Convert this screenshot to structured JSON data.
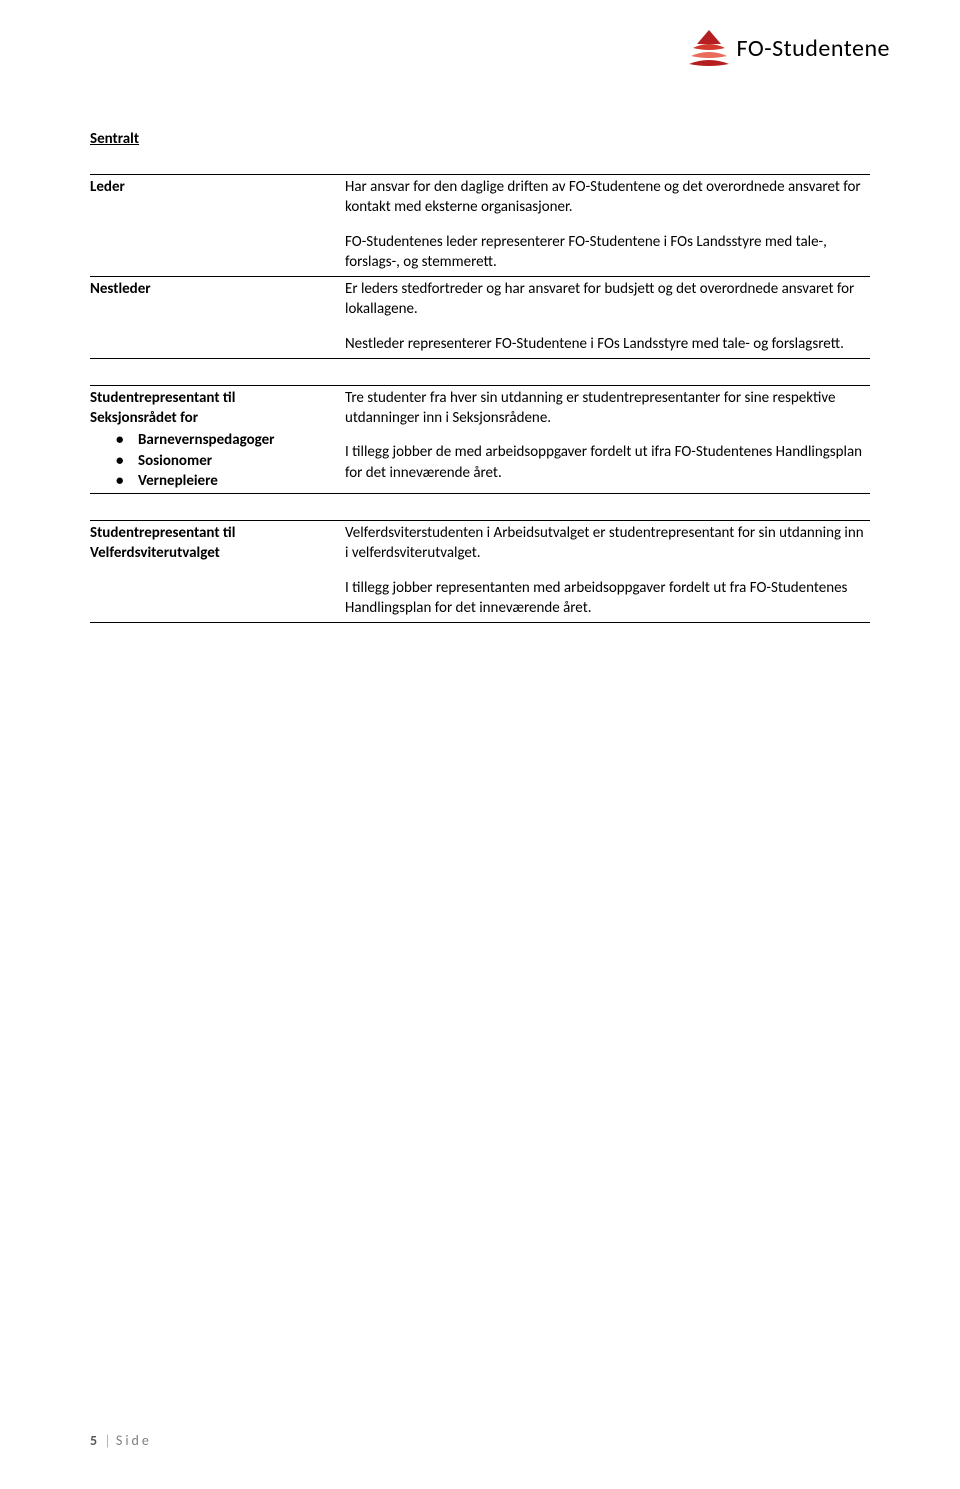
{
  "logo": {
    "text": "FO-Studentene",
    "text_color": "#000000",
    "font_size": 24,
    "wave_colors": [
      "#b51f1f",
      "#d23a2e",
      "#e86b5c"
    ]
  },
  "heading": "Sentralt",
  "sections": [
    {
      "left_lines": [
        "Leder"
      ],
      "bullets": [],
      "paragraphs": [
        "Har ansvar for den daglige driften av FO-Studentene og det overordnede ansvaret for kontakt med eksterne organisasjoner.",
        "FO-Studentenes leder representerer FO-Studentene i FOs Landsstyre med tale-, forslags-, og stemmerett."
      ],
      "last": false
    },
    {
      "left_lines": [
        "Nestleder"
      ],
      "bullets": [],
      "paragraphs": [
        "Er leders stedfortreder og har ansvaret for budsjett og det overordnede ansvaret for lokallagene.",
        "Nestleder representerer FO-Studentene i FOs Landsstyre med tale- og forslagsrett."
      ],
      "last": true
    }
  ],
  "sections2": [
    {
      "left_lines": [
        "Studentrepresentant til",
        "Seksjonsrådet for"
      ],
      "bullets": [
        "Barnevernspedagoger",
        "Sosionomer",
        "Vernepleiere"
      ],
      "paragraphs": [
        "Tre studenter fra hver sin utdanning er studentrepresentanter for sine respektive utdanninger inn i Seksjonsrådene.",
        "I tillegg jobber de med arbeidsoppgaver fordelt ut ifra FO-Studentenes Handlingsplan for det inneværende året."
      ],
      "last": true
    }
  ],
  "sections3": [
    {
      "left_lines": [
        "Studentrepresentant til",
        "Velferdsviterutvalget"
      ],
      "bullets": [],
      "paragraphs": [
        "Velferdsviterstudenten i Arbeidsutvalget er studentrepresentant for sin utdanning inn i velferdsviterutvalget.",
        "I tillegg jobber representanten med arbeidsoppgaver fordelt ut fra FO-Studentenes Handlingsplan for det inneværende året."
      ],
      "last": true
    }
  ],
  "footer": {
    "page_number": "5",
    "label": "Side"
  },
  "style": {
    "body_font_size": 15,
    "body_color": "#000000",
    "rule_color": "#000000",
    "footer_color": "#808080",
    "footer_strong_color": "#595959",
    "background": "#ffffff"
  }
}
